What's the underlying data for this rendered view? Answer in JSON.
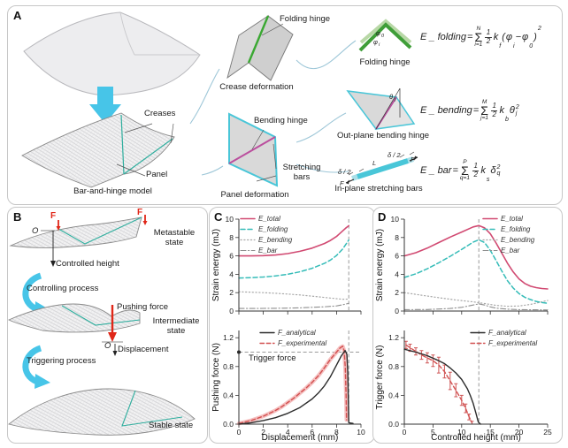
{
  "panel_labels": {
    "A": "A",
    "B": "B",
    "C": "C",
    "D": "D"
  },
  "colors": {
    "e_total": "#d14a72",
    "e_folding": "#35bcb8",
    "e_bending": "#a8a8a8",
    "e_bar": "#8f8f8f",
    "f_analytical": "#2b2b2b",
    "f_experimental": "#d25050",
    "experimental_band": "#f5c0c0",
    "dashed_guide": "#9a9a9a",
    "cyan_arrow": "#47c5e8",
    "red_arrow": "#e02718",
    "green_hinge": "#3aa832",
    "green_hinge_light": "#b8d8a6",
    "magenta_hinge": "#bb4f9e",
    "cyan_bar": "#49c6d8",
    "teal_crease": "#2fae9e",
    "panel_fill": "#d9d9d9"
  },
  "panelA": {
    "caption_model": "Bar-and-hinge model",
    "caption_crease": "Crease deformation",
    "caption_panel": "Panel deformation",
    "caption_folding_icon": "Folding hinge",
    "caption_outplane": "Out-plane bending hinge",
    "caption_inplane": "In-plane stretching bars",
    "ann_creases": "Creases",
    "ann_panel": "Panel",
    "ann_folding_hinge": "Folding hinge",
    "ann_bending_hinge": "Bending hinge",
    "ann_stretching_bars": "Stretching bars",
    "phi": "φ",
    "sub_zero": "0",
    "sub_i": "i",
    "theta": "θ",
    "sub_j": "j",
    "delta_half": "δ / 2",
    "length_L": "L",
    "force_F": "F"
  },
  "equations": {
    "folding": {
      "lhs": "E _ folding",
      "equals": "=",
      "sum": "Σ",
      "sup": "N",
      "sub": "i=1",
      "num": "1",
      "den": "2",
      "coef": "k",
      "coef_sub": "f",
      "open": "(",
      "var1": "φ",
      "var1_sub": "i",
      "minus": "−",
      "var2": "φ",
      "var2_sub": "0",
      "close": ")",
      "power": "2"
    },
    "bending": {
      "lhs": "E _ bending",
      "equals": "=",
      "sum": "Σ",
      "sup": "M",
      "sub": "j=1",
      "num": "1",
      "den": "2",
      "coef": "k",
      "coef_sub": "b",
      "var": "θ",
      "var_sub": "j",
      "power": "2"
    },
    "bar": {
      "lhs": "E _ bar",
      "equals": "=",
      "sum": "Σ",
      "sup": "P",
      "sub": "q=1",
      "num": "1",
      "den": "2",
      "coef": "k",
      "coef_sub": "s",
      "var": "δ",
      "var_sub": "q",
      "power": "2"
    }
  },
  "panelB": {
    "force_F": "F",
    "origin_O": "O",
    "controlled_height": "Controlled height",
    "pushing_force": "Pushing force",
    "displacement": "Displacement",
    "state_metastable": "Metastable state",
    "state_intermediate": "Intermediate state",
    "state_stable": "Stable state",
    "proc_controlling": "Controlling process",
    "proc_triggering": "Triggering process"
  },
  "chart_data": {
    "c_energy": {
      "type": "line",
      "ylabel": "Strain energy (mJ)",
      "xlim": [
        0,
        10
      ],
      "ylim": [
        0,
        10
      ],
      "yticks": [
        "0",
        "2",
        "4",
        "6",
        "8",
        "10"
      ],
      "legend": [
        "E_total",
        "E_folding",
        "E_bending",
        "E_bar"
      ],
      "legend_position": "top-left",
      "grid": false,
      "vline_x": 9.0,
      "series": [
        {
          "name": "E_total",
          "style": "solid",
          "color": "#d14a72",
          "points": [
            [
              0,
              6.0
            ],
            [
              1,
              6.0
            ],
            [
              2,
              6.03
            ],
            [
              3,
              6.1
            ],
            [
              4,
              6.25
            ],
            [
              5,
              6.5
            ],
            [
              6,
              6.85
            ],
            [
              7,
              7.35
            ],
            [
              7.5,
              7.68
            ],
            [
              8,
              8.12
            ],
            [
              8.5,
              8.72
            ],
            [
              8.8,
              9.08
            ],
            [
              9,
              9.28
            ]
          ]
        },
        {
          "name": "E_folding",
          "style": "dashed",
          "color": "#35bcb8",
          "points": [
            [
              0,
              3.6
            ],
            [
              1,
              3.63
            ],
            [
              2,
              3.7
            ],
            [
              3,
              3.82
            ],
            [
              4,
              4.0
            ],
            [
              5,
              4.27
            ],
            [
              6,
              4.65
            ],
            [
              7,
              5.18
            ],
            [
              7.5,
              5.55
            ],
            [
              8,
              6.05
            ],
            [
              8.5,
              6.75
            ],
            [
              9,
              7.72
            ]
          ]
        },
        {
          "name": "E_bending",
          "style": "dotted",
          "color": "#a8a8a8",
          "points": [
            [
              0,
              2.1
            ],
            [
              1,
              2.05
            ],
            [
              2,
              2.0
            ],
            [
              3,
              1.93
            ],
            [
              4,
              1.85
            ],
            [
              5,
              1.75
            ],
            [
              6,
              1.62
            ],
            [
              7,
              1.48
            ],
            [
              8,
              1.35
            ],
            [
              8.5,
              1.28
            ],
            [
              9,
              1.3
            ]
          ]
        },
        {
          "name": "E_bar",
          "style": "dashdot",
          "color": "#8f8f8f",
          "points": [
            [
              0,
              0.28
            ],
            [
              1,
              0.28
            ],
            [
              2,
              0.29
            ],
            [
              3,
              0.3
            ],
            [
              4,
              0.32
            ],
            [
              5,
              0.35
            ],
            [
              6,
              0.4
            ],
            [
              7,
              0.46
            ],
            [
              8,
              0.56
            ],
            [
              8.5,
              0.68
            ],
            [
              9,
              0.84
            ]
          ]
        }
      ]
    },
    "c_force": {
      "type": "line",
      "xlabel": "Displacement (mm)",
      "ylabel": "Pushing force (N)",
      "xlim": [
        0,
        10
      ],
      "ylim": [
        0,
        1.3
      ],
      "xticks": [
        "0",
        "2",
        "4",
        "6",
        "8",
        "10"
      ],
      "yticks": [
        "0.0",
        "0.4",
        "0.8",
        "1.2"
      ],
      "legend": [
        "F_analytical",
        "F_experimental"
      ],
      "annotation": "Trigger force",
      "trigger_force_level": 1.0,
      "vline_x": 9.0,
      "series": [
        {
          "name": "F_analytical",
          "style": "solid",
          "color": "#2b2b2b",
          "points": [
            [
              0,
              0
            ],
            [
              1,
              0.02
            ],
            [
              2,
              0.05
            ],
            [
              3,
              0.09
            ],
            [
              4,
              0.15
            ],
            [
              5,
              0.23
            ],
            [
              6,
              0.35
            ],
            [
              6.5,
              0.43
            ],
            [
              7,
              0.53
            ],
            [
              7.5,
              0.66
            ],
            [
              8,
              0.82
            ],
            [
              8.4,
              0.95
            ],
            [
              8.7,
              1.02
            ],
            [
              8.85,
              0.97
            ],
            [
              8.92,
              0.72
            ],
            [
              8.97,
              0.3
            ],
            [
              9.0,
              0.02
            ],
            [
              9.35,
              0.01
            ]
          ]
        },
        {
          "name": "F_experimental",
          "style": "dashed",
          "color": "#d25050",
          "points": [
            [
              0,
              0.01
            ],
            [
              0.5,
              0.03
            ],
            [
              1,
              0.05
            ],
            [
              1.5,
              0.08
            ],
            [
              2,
              0.11
            ],
            [
              2.5,
              0.15
            ],
            [
              3,
              0.19
            ],
            [
              3.5,
              0.24
            ],
            [
              4,
              0.3
            ],
            [
              4.5,
              0.36
            ],
            [
              5,
              0.43
            ],
            [
              5.5,
              0.5
            ],
            [
              6,
              0.58
            ],
            [
              6.5,
              0.67
            ],
            [
              7,
              0.78
            ],
            [
              7.5,
              0.9
            ],
            [
              8,
              1.0
            ],
            [
              8.3,
              1.06
            ],
            [
              8.5,
              1.08
            ],
            [
              8.62,
              1.02
            ],
            [
              8.72,
              0.78
            ],
            [
              8.78,
              0.4
            ],
            [
              8.82,
              0.06
            ]
          ]
        }
      ]
    },
    "d_energy": {
      "type": "line",
      "ylabel": "Strain energy (mJ)",
      "xlim": [
        0,
        25
      ],
      "ylim": [
        0,
        10
      ],
      "yticks": [
        "0",
        "2",
        "4",
        "6",
        "8",
        "10"
      ],
      "legend": [
        "E_total",
        "E_folding",
        "E_bending",
        "E_bar"
      ],
      "legend_position": "top-right",
      "grid": false,
      "vline_x": 13,
      "series": [
        {
          "name": "E_total",
          "style": "solid",
          "color": "#d14a72",
          "points": [
            [
              0,
              6.0
            ],
            [
              2,
              6.35
            ],
            [
              4,
              6.85
            ],
            [
              6,
              7.45
            ],
            [
              8,
              8.05
            ],
            [
              10,
              8.6
            ],
            [
              12,
              9.15
            ],
            [
              13,
              9.3
            ],
            [
              14,
              9.05
            ],
            [
              15,
              8.4
            ],
            [
              16,
              7.4
            ],
            [
              17,
              6.3
            ],
            [
              18,
              5.2
            ],
            [
              19,
              4.25
            ],
            [
              20,
              3.5
            ],
            [
              21,
              3.0
            ],
            [
              22,
              2.7
            ],
            [
              23,
              2.55
            ],
            [
              24,
              2.45
            ],
            [
              25,
              2.4
            ]
          ]
        },
        {
          "name": "E_folding",
          "style": "dashed",
          "color": "#35bcb8",
          "points": [
            [
              0,
              3.65
            ],
            [
              2,
              4.05
            ],
            [
              4,
              4.6
            ],
            [
              6,
              5.25
            ],
            [
              8,
              5.95
            ],
            [
              10,
              6.7
            ],
            [
              12,
              7.5
            ],
            [
              13,
              7.75
            ],
            [
              14,
              7.45
            ],
            [
              15,
              6.6
            ],
            [
              16,
              5.5
            ],
            [
              17,
              4.35
            ],
            [
              18,
              3.3
            ],
            [
              19,
              2.5
            ],
            [
              20,
              1.9
            ],
            [
              21,
              1.5
            ],
            [
              22,
              1.25
            ],
            [
              23,
              1.05
            ],
            [
              24,
              0.92
            ],
            [
              25,
              0.85
            ]
          ]
        },
        {
          "name": "E_bending",
          "style": "dotted",
          "color": "#a8a8a8",
          "points": [
            [
              0,
              2.0
            ],
            [
              3,
              1.72
            ],
            [
              6,
              1.45
            ],
            [
              9,
              1.2
            ],
            [
              12,
              1.0
            ],
            [
              14,
              0.82
            ],
            [
              16,
              0.62
            ],
            [
              18,
              0.52
            ],
            [
              20,
              0.55
            ],
            [
              22,
              0.72
            ],
            [
              24,
              1.0
            ],
            [
              25,
              1.15
            ]
          ]
        },
        {
          "name": "E_bar",
          "style": "dashdot",
          "color": "#8f8f8f",
          "points": [
            [
              0,
              0.15
            ],
            [
              4,
              0.16
            ],
            [
              8,
              0.28
            ],
            [
              10,
              0.4
            ],
            [
              12,
              0.65
            ],
            [
              13,
              0.78
            ],
            [
              14,
              0.65
            ],
            [
              15,
              0.45
            ],
            [
              16,
              0.32
            ],
            [
              18,
              0.2
            ],
            [
              20,
              0.15
            ],
            [
              23,
              0.13
            ],
            [
              25,
              0.12
            ]
          ]
        }
      ]
    },
    "d_force": {
      "type": "line",
      "xlabel": "Controlled height (mm)",
      "ylabel": "Trigger force (N)",
      "xlim": [
        0,
        25
      ],
      "ylim": [
        0,
        1.3
      ],
      "xticks": [
        "0",
        "5",
        "10",
        "15",
        "20",
        "25"
      ],
      "yticks": [
        "0.0",
        "0.4",
        "0.8",
        "1.2"
      ],
      "legend": [
        "F_analytical",
        "F_experimental"
      ],
      "vline_x": 13,
      "series": [
        {
          "name": "F_analytical",
          "style": "solid",
          "color": "#2b2b2b",
          "points": [
            [
              0,
              1.04
            ],
            [
              2,
              1.0
            ],
            [
              4,
              0.95
            ],
            [
              6,
              0.88
            ],
            [
              7,
              0.84
            ],
            [
              8,
              0.78
            ],
            [
              9,
              0.71
            ],
            [
              10,
              0.62
            ],
            [
              11,
              0.49
            ],
            [
              11.5,
              0.4
            ],
            [
              12,
              0.29
            ],
            [
              12.5,
              0.15
            ],
            [
              12.9,
              0.03
            ],
            [
              13.3,
              0.0
            ]
          ]
        },
        {
          "name": "F_experimental",
          "style": "dashed-errorbars",
          "color": "#d25050",
          "points": [
            [
              0.3,
              1.1,
              0.05
            ],
            [
              1,
              1.06,
              0.05
            ],
            [
              2,
              1.01,
              0.05
            ],
            [
              3,
              0.96,
              0.06
            ],
            [
              4,
              0.92,
              0.07
            ],
            [
              5,
              0.88,
              0.08
            ],
            [
              6,
              0.82,
              0.11
            ],
            [
              7,
              0.73,
              0.09
            ],
            [
              8,
              0.6,
              0.12
            ],
            [
              9,
              0.47,
              0.09
            ],
            [
              10,
              0.33,
              0.07
            ],
            [
              10.7,
              0.22,
              0.06
            ],
            [
              11.3,
              0.1,
              0.04
            ],
            [
              11.8,
              0.02,
              0.02
            ]
          ]
        }
      ]
    }
  }
}
